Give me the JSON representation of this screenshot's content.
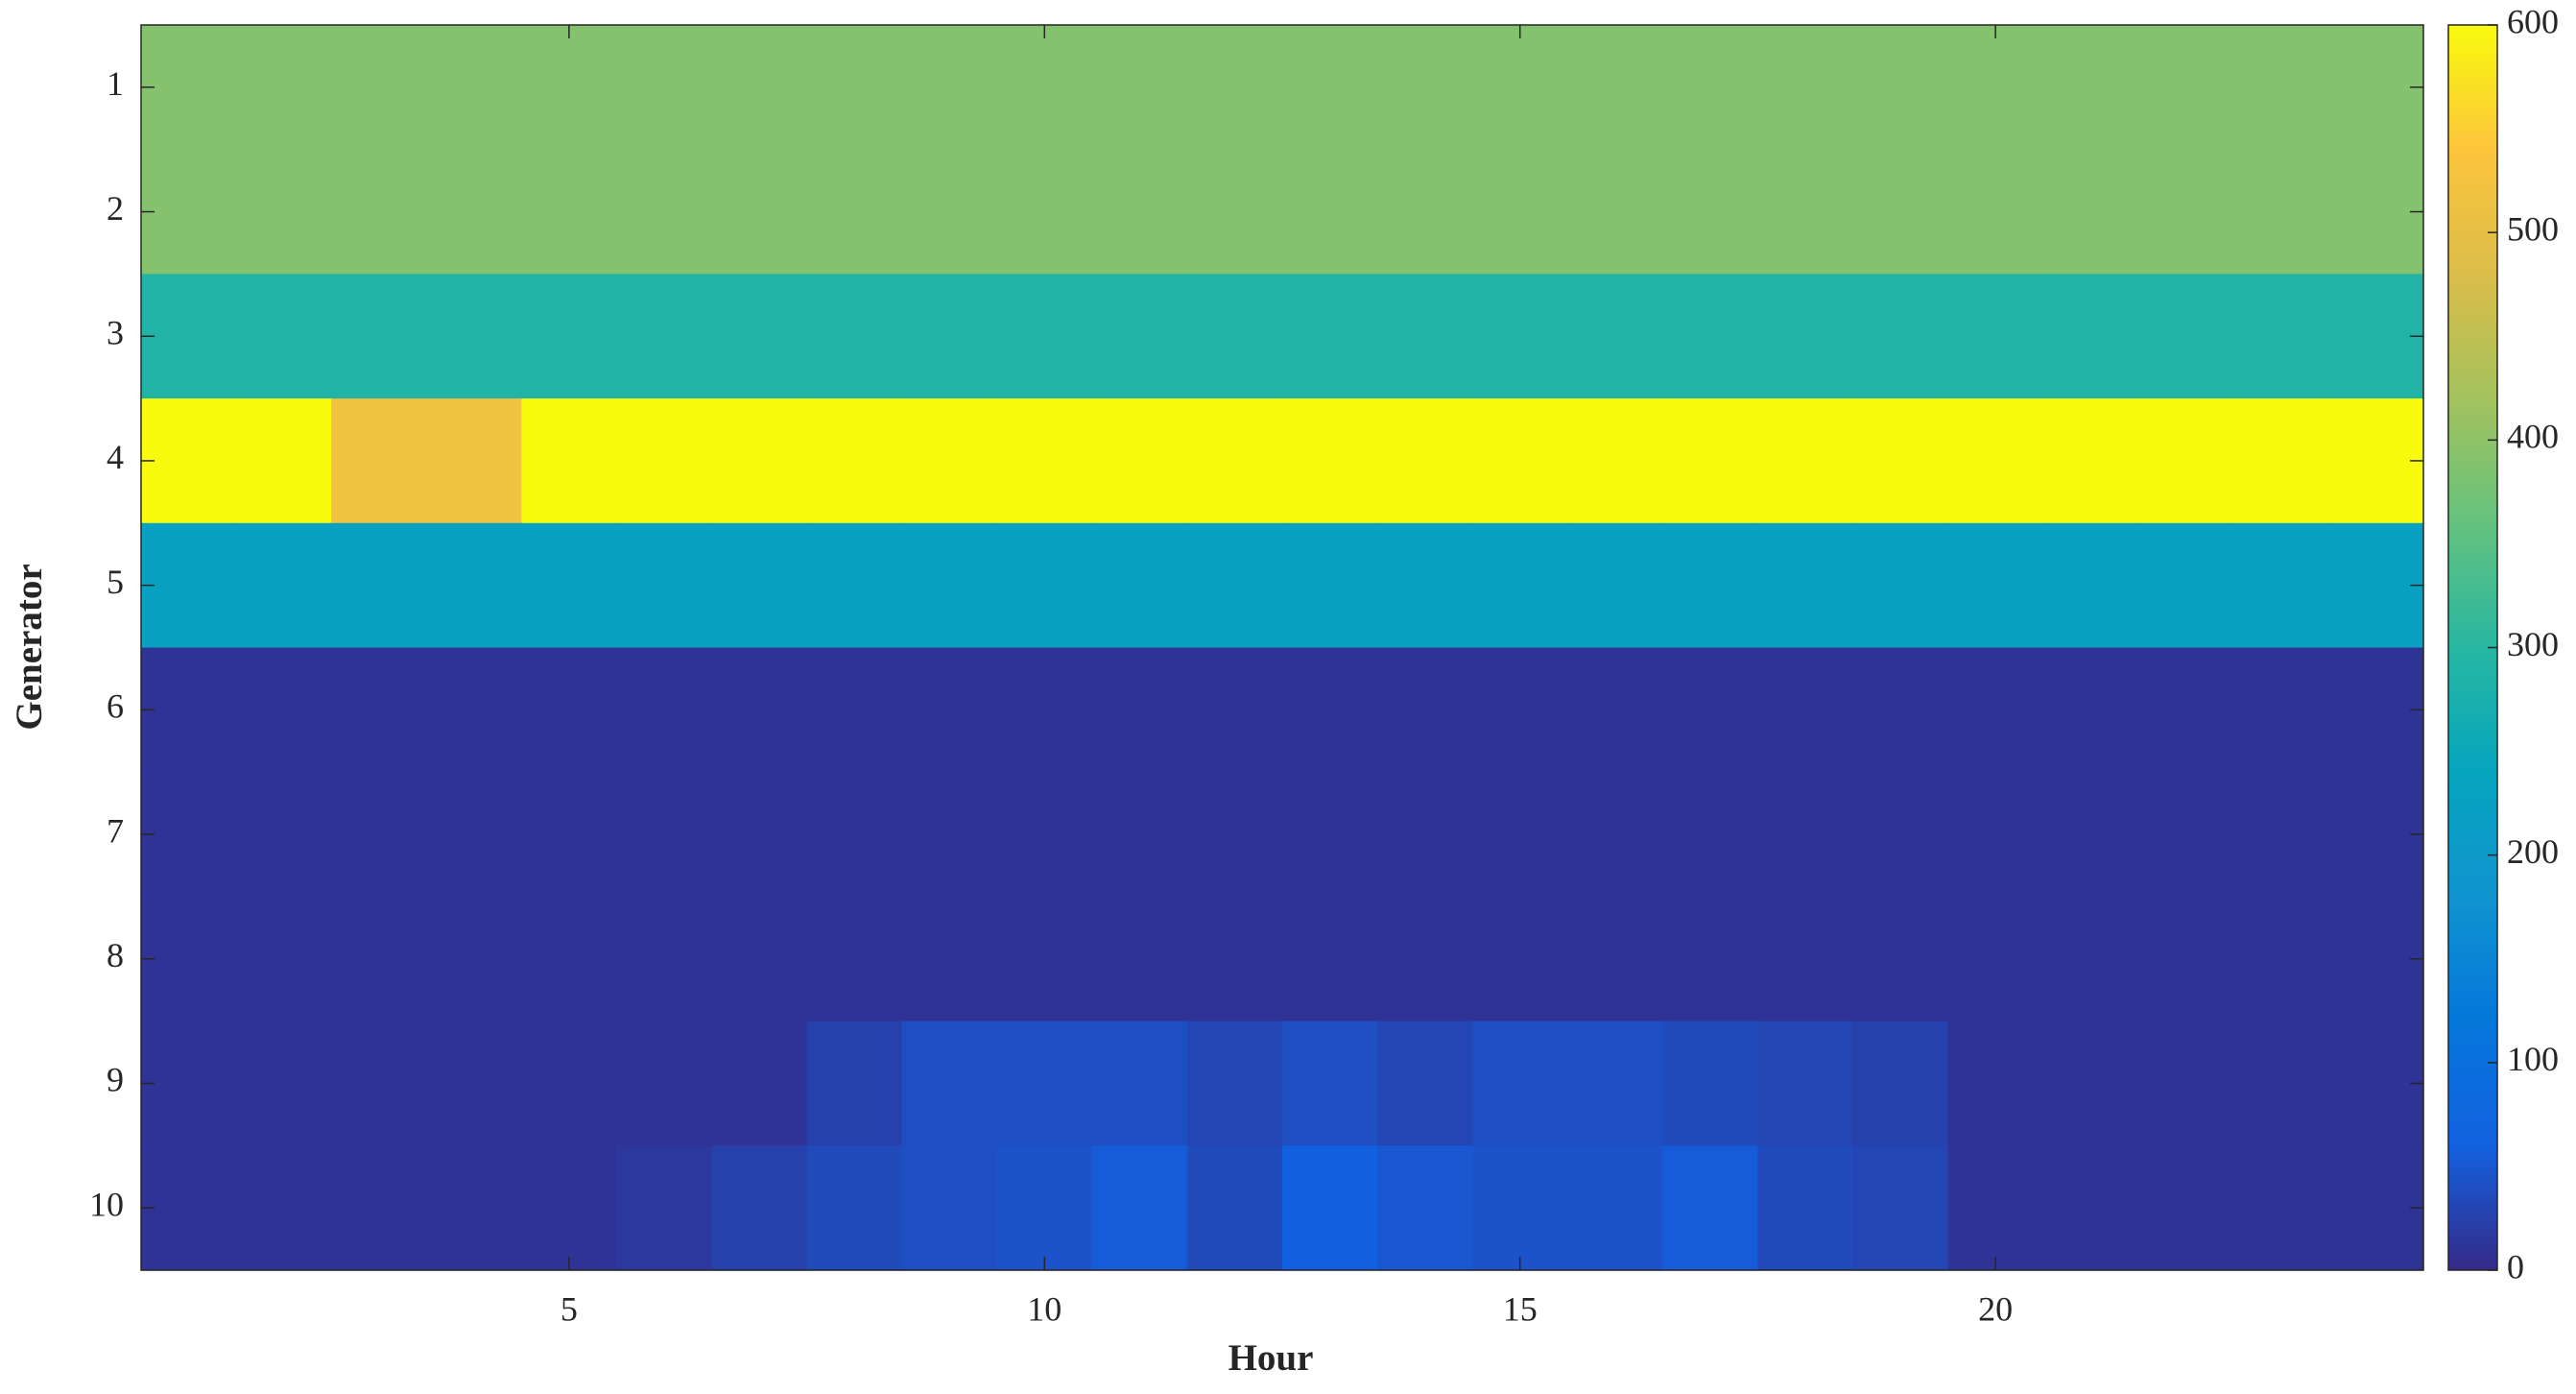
{
  "chart_data": {
    "type": "heatmap",
    "xlabel": "Hour",
    "ylabel": "Generator",
    "x": [
      1,
      2,
      3,
      4,
      5,
      6,
      7,
      8,
      9,
      10,
      11,
      12,
      13,
      14,
      15,
      16,
      17,
      18,
      19,
      20,
      21,
      22,
      23,
      24
    ],
    "y": [
      1,
      2,
      3,
      4,
      5,
      6,
      7,
      8,
      9,
      10
    ],
    "values": [
      [
        390,
        390,
        390,
        390,
        390,
        390,
        390,
        390,
        390,
        390,
        390,
        390,
        390,
        390,
        390,
        390,
        390,
        390,
        390,
        390,
        390,
        390,
        390,
        390
      ],
      [
        390,
        390,
        390,
        390,
        390,
        390,
        390,
        390,
        390,
        390,
        390,
        390,
        390,
        390,
        390,
        390,
        390,
        390,
        390,
        390,
        390,
        390,
        390,
        390
      ],
      [
        290,
        290,
        290,
        290,
        290,
        290,
        290,
        290,
        290,
        290,
        290,
        290,
        290,
        290,
        290,
        290,
        290,
        290,
        290,
        290,
        290,
        290,
        290,
        290
      ],
      [
        600,
        600,
        520,
        520,
        600,
        600,
        600,
        600,
        600,
        600,
        600,
        600,
        600,
        600,
        600,
        600,
        600,
        600,
        600,
        600,
        600,
        600,
        600,
        600
      ],
      [
        225,
        225,
        225,
        225,
        225,
        225,
        225,
        225,
        225,
        225,
        225,
        225,
        225,
        225,
        225,
        225,
        225,
        225,
        225,
        225,
        225,
        225,
        225,
        225
      ],
      [
        10,
        10,
        10,
        10,
        10,
        10,
        10,
        10,
        10,
        10,
        10,
        10,
        10,
        10,
        10,
        10,
        10,
        10,
        10,
        10,
        10,
        10,
        10,
        10
      ],
      [
        10,
        10,
        10,
        10,
        10,
        10,
        10,
        10,
        10,
        10,
        10,
        10,
        10,
        10,
        10,
        10,
        10,
        10,
        10,
        10,
        10,
        10,
        10,
        10
      ],
      [
        10,
        10,
        10,
        10,
        10,
        10,
        10,
        10,
        10,
        10,
        10,
        10,
        10,
        10,
        10,
        10,
        10,
        10,
        10,
        10,
        10,
        10,
        10,
        10
      ],
      [
        10,
        10,
        10,
        10,
        10,
        10,
        10,
        25,
        40,
        40,
        40,
        30,
        40,
        30,
        40,
        40,
        35,
        30,
        25,
        10,
        10,
        10,
        10,
        10
      ],
      [
        10,
        10,
        10,
        10,
        10,
        15,
        25,
        35,
        40,
        45,
        55,
        35,
        60,
        50,
        45,
        45,
        55,
        35,
        30,
        10,
        10,
        10,
        10,
        10
      ]
    ],
    "xlim": [
      0.5,
      24.5
    ],
    "xticks": [
      5,
      10,
      15,
      20
    ],
    "ylim": [
      0.5,
      10.5
    ],
    "yticks": [
      1,
      2,
      3,
      4,
      5,
      6,
      7,
      8,
      9,
      10
    ],
    "clim": [
      0,
      600
    ],
    "cticks": [
      0,
      100,
      200,
      300,
      400,
      500,
      600
    ],
    "colormap": [
      "#352a87",
      "#1361e0",
      "#0477da",
      "#1094cf",
      "#06a5be",
      "#27b7a1",
      "#64c27e",
      "#a4c25d",
      "#dbbd49",
      "#fcc53c",
      "#f9fb0e"
    ]
  }
}
